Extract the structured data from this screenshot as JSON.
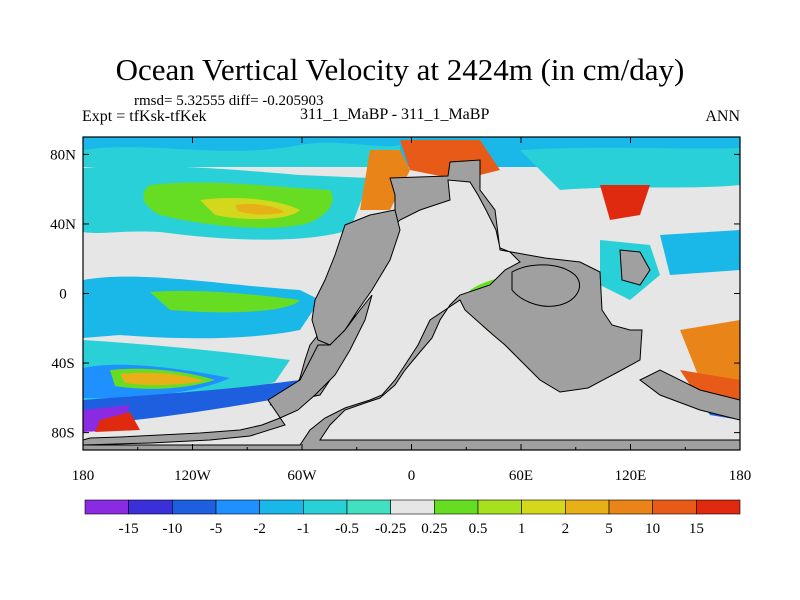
{
  "chart_data": {
    "type": "heatmap",
    "title": "Ocean Vertical Velocity at 2424m (in cm/day)",
    "stats": "rmsd= 5.32555 diff= -0.205903",
    "left_label": "Expt = tfKsk-tfKek",
    "center_label": "311_1_MaBP - 311_1_MaBP",
    "right_label": "ANN",
    "x_ticks": [
      "180",
      "120W",
      "60W",
      "0",
      "60E",
      "120E",
      "180"
    ],
    "x_values": [
      -180,
      -120,
      -60,
      0,
      60,
      120,
      180
    ],
    "y_ticks": [
      "80N",
      "40N",
      "0",
      "40S",
      "80S"
    ],
    "y_values": [
      80,
      40,
      0,
      -40,
      -80
    ],
    "xlim": [
      -180,
      180
    ],
    "ylim": [
      -90,
      90
    ],
    "colorbar": {
      "labels": [
        "-15",
        "-10",
        "-5",
        "-2",
        "-1",
        "-0.5",
        "-0.25",
        "0.25",
        "0.5",
        "1",
        "2",
        "5",
        "10",
        "15"
      ],
      "colors": [
        "#8a2be2",
        "#3a2fd8",
        "#1e5fe0",
        "#1e90ff",
        "#1ab8e8",
        "#2ad0d8",
        "#40e0c0",
        "#e6e6e6",
        "#66dd22",
        "#a8e020",
        "#d4d81c",
        "#e8b018",
        "#e88418",
        "#e85a18",
        "#e02a10"
      ]
    },
    "land_color": "#a0a0a0"
  }
}
